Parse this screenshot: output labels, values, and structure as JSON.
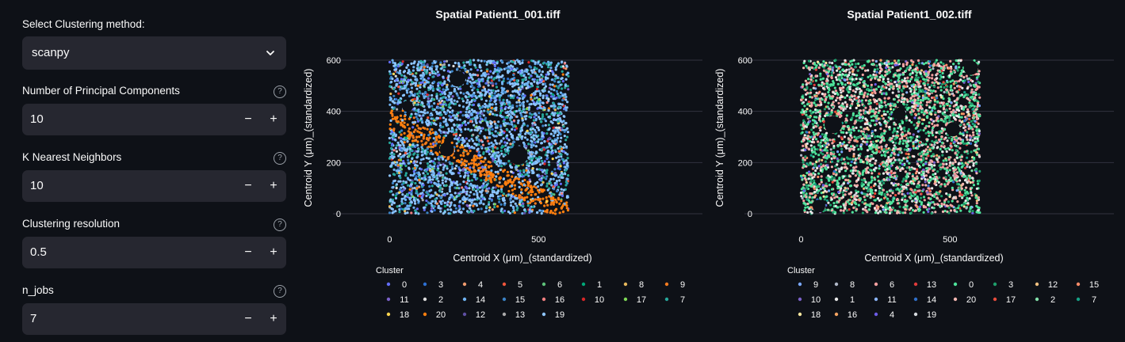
{
  "sidebar": {
    "method_label": "Select Clustering method:",
    "method_value": "scanpy",
    "fields": [
      {
        "label": "Number of Principal Components",
        "value": "10"
      },
      {
        "label": "K Nearest Neighbors",
        "value": "10"
      },
      {
        "label": "Clustering resolution",
        "value": "0.5"
      },
      {
        "label": "n_jobs",
        "value": "7"
      }
    ],
    "minus_label": "−",
    "plus_label": "+",
    "help_label": "?"
  },
  "chart_data": [
    {
      "type": "scatter",
      "title": "Spatial Patient1_001.tiff",
      "xlabel": "Centroid X (μm)_(standardized)",
      "ylabel": "Centroid Y (μm)_(standardized)",
      "xlim": [
        -190,
        1050
      ],
      "ylim": [
        0,
        600
      ],
      "x_ticks": [
        0,
        500
      ],
      "y_ticks": [
        0,
        200,
        400,
        600
      ],
      "data_x_range": [
        0,
        600
      ],
      "data_y_range": [
        0,
        600
      ],
      "legend_title": "Cluster",
      "legend_position": "bottom",
      "legend": [
        "0",
        "3",
        "4",
        "5",
        "6",
        "1",
        "8",
        "9",
        "11",
        "2",
        "14",
        "15",
        "16",
        "10",
        "17",
        "7",
        "18",
        "20",
        "12",
        "13",
        "19"
      ],
      "colors": {
        "0": "#636efa",
        "3": "#2d6fd1",
        "4": "#ef9b6e",
        "5": "#ef553b",
        "6": "#5ec27a",
        "1": "#00a878",
        "8": "#e6b85c",
        "9": "#f47b20",
        "11": "#7b61c9",
        "2": "#dcdcdc",
        "14": "#6fb3f2",
        "15": "#3b82c4",
        "16": "#f08080",
        "10": "#d62728",
        "17": "#7ed957",
        "7": "#26a69a",
        "18": "#ffd54f",
        "20": "#ff7f0e",
        "12": "#5e4fa2",
        "13": "#aaaaaa",
        "19": "#8ec5ff"
      }
    },
    {
      "type": "scatter",
      "title": "Spatial Patient1_002.tiff",
      "xlabel": "Centroid X (μm)_(standardized)",
      "ylabel": "Centroid Y (μm)_(standardized)",
      "xlim": [
        -190,
        1050
      ],
      "ylim": [
        0,
        600
      ],
      "x_ticks": [
        0,
        500
      ],
      "y_ticks": [
        0,
        200,
        400,
        600
      ],
      "data_x_range": [
        0,
        600
      ],
      "data_y_range": [
        0,
        600
      ],
      "legend_title": "Cluster",
      "legend_position": "bottom",
      "legend": [
        "9",
        "8",
        "6",
        "13",
        "0",
        "3",
        "12",
        "15",
        "10",
        "1",
        "11",
        "14",
        "20",
        "17",
        "2",
        "7",
        "18",
        "16",
        "4",
        "19"
      ],
      "colors": {
        "9": "#7aa8ff",
        "8": "#b0b8c8",
        "6": "#f4a0a0",
        "13": "#e03b3b",
        "0": "#4ee39b",
        "3": "#1f9e6b",
        "12": "#f0c080",
        "15": "#ff8c69",
        "10": "#7b61c9",
        "1": "#e8e8e8",
        "11": "#8ab4f8",
        "14": "#2f6fc9",
        "20": "#f5b7b1",
        "17": "#e74c3c",
        "2": "#82e0aa",
        "7": "#16a085",
        "18": "#f9e79f",
        "16": "#f5a462",
        "4": "#6c5ce7",
        "19": "#d6dbdf"
      }
    }
  ]
}
